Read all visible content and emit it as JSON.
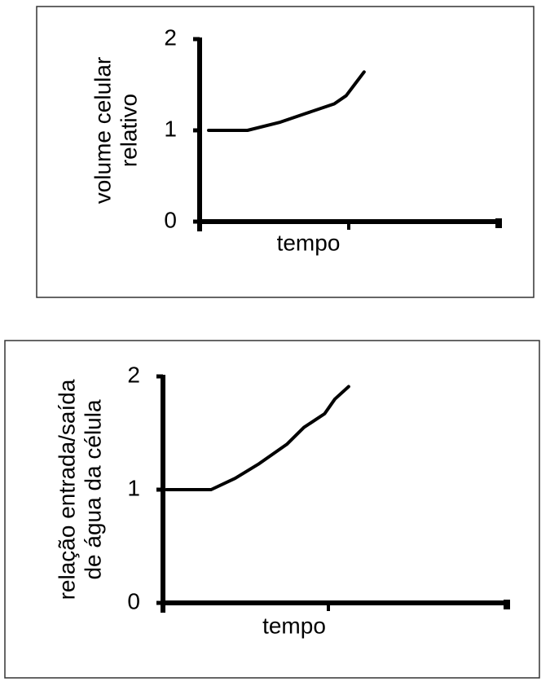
{
  "chart_data": [
    {
      "type": "line",
      "xlabel": "tempo",
      "ylabel": [
        "volume celular",
        "relativo"
      ],
      "xlim": [
        0,
        1
      ],
      "ylim": [
        0,
        2
      ],
      "yticks": [
        0,
        1,
        2
      ],
      "series": [
        {
          "color": "#000000",
          "x": [
            0.03,
            0.16,
            0.27,
            0.35,
            0.45,
            0.49,
            0.52,
            0.55
          ],
          "values": [
            1.0,
            1.0,
            1.09,
            1.18,
            1.29,
            1.38,
            1.51,
            1.64
          ]
        }
      ]
    },
    {
      "type": "line",
      "xlabel": "tempo",
      "ylabel": [
        "relação entrada/saída",
        "de água da célula"
      ],
      "xlim": [
        0,
        1
      ],
      "ylim": [
        0,
        2
      ],
      "yticks": [
        0,
        1,
        2
      ],
      "series": [
        {
          "color": "#000000",
          "x": [
            0.01,
            0.14,
            0.21,
            0.28,
            0.36,
            0.41,
            0.47,
            0.5,
            0.54
          ],
          "values": [
            1.0,
            1.0,
            1.1,
            1.23,
            1.4,
            1.55,
            1.67,
            1.8,
            1.91
          ]
        }
      ]
    }
  ]
}
